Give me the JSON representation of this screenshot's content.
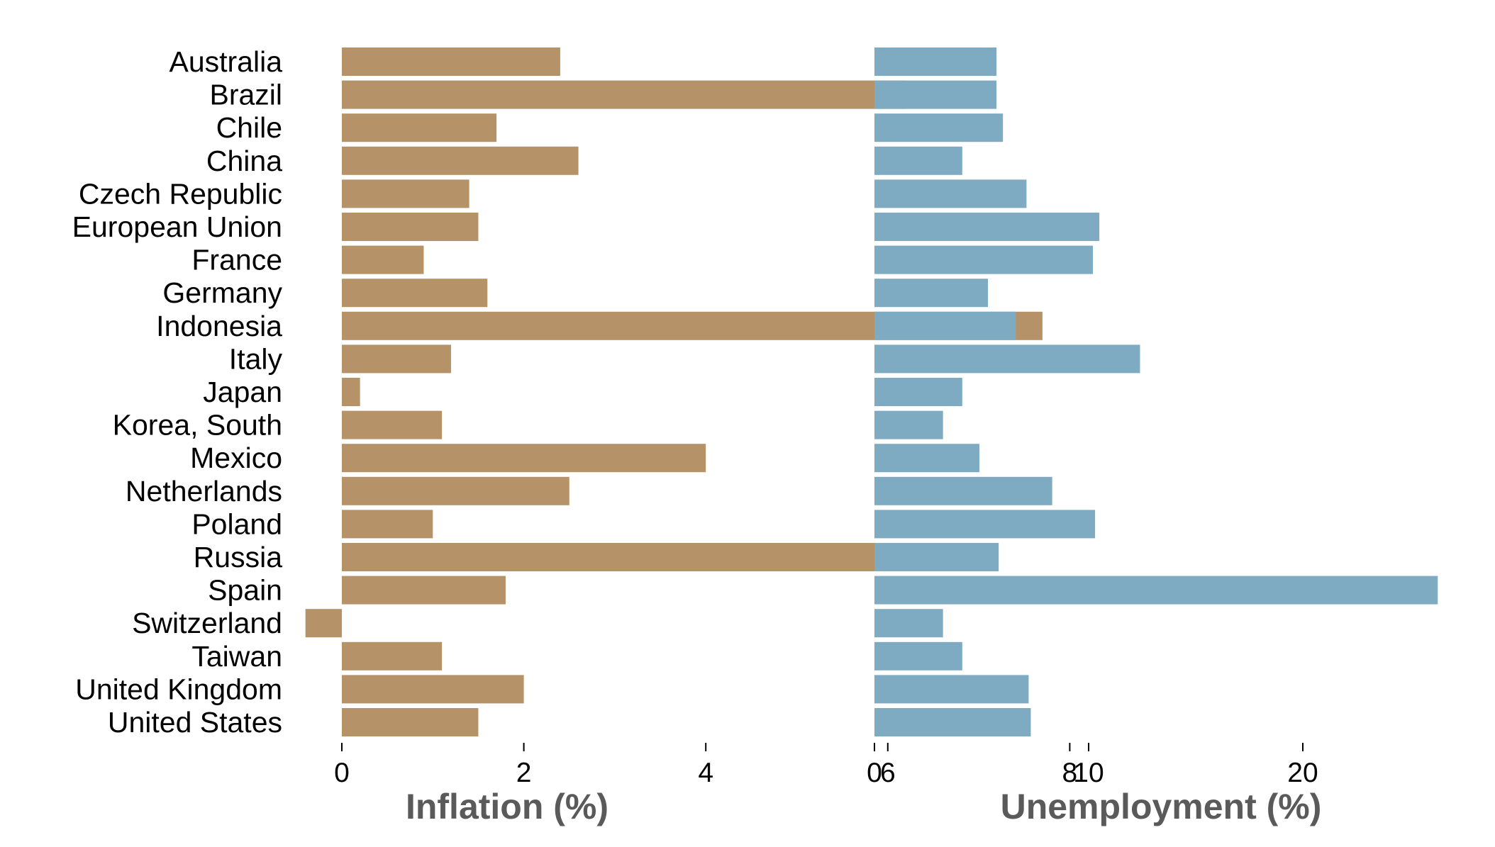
{
  "chart_data": [
    {
      "type": "bar",
      "orientation": "horizontal",
      "categories": [
        "Australia",
        "Brazil",
        "Chile",
        "China",
        "Czech Republic",
        "European Union",
        "France",
        "Germany",
        "Indonesia",
        "Italy",
        "Japan",
        "Korea, South",
        "Mexico",
        "Netherlands",
        "Poland",
        "Russia",
        "Spain",
        "Switzerland",
        "Taiwan",
        "United Kingdom",
        "United States"
      ],
      "values": [
        2.4,
        6.2,
        1.7,
        2.6,
        1.4,
        1.5,
        0.9,
        1.6,
        7.7,
        1.2,
        0.2,
        1.1,
        4.0,
        2.5,
        1.0,
        6.8,
        1.8,
        -0.4,
        1.1,
        2.0,
        1.5
      ],
      "xlabel": "Inflation (%)",
      "xticks": [
        "0",
        "2",
        "4",
        "6",
        "8"
      ],
      "xlim": [
        -0.4,
        8
      ],
      "color": "#b59268",
      "grid": false
    },
    {
      "type": "bar",
      "orientation": "horizontal",
      "categories": [
        "Australia",
        "Brazil",
        "Chile",
        "China",
        "Czech Republic",
        "European Union",
        "France",
        "Germany",
        "Indonesia",
        "Italy",
        "Japan",
        "Korea, South",
        "Mexico",
        "Netherlands",
        "Poland",
        "Russia",
        "Spain",
        "Switzerland",
        "Taiwan",
        "United Kingdom",
        "United States"
      ],
      "values": [
        5.7,
        5.7,
        6.0,
        4.1,
        7.1,
        10.5,
        10.2,
        5.3,
        6.6,
        12.4,
        4.1,
        3.2,
        4.9,
        8.3,
        10.3,
        5.8,
        26.3,
        3.2,
        4.1,
        7.2,
        7.3
      ],
      "xlabel": "Unemployment (%)",
      "xticks": [
        "0",
        "10",
        "20"
      ],
      "xlim": [
        0,
        26.3
      ],
      "color": "#7fabc2",
      "grid": false
    }
  ]
}
